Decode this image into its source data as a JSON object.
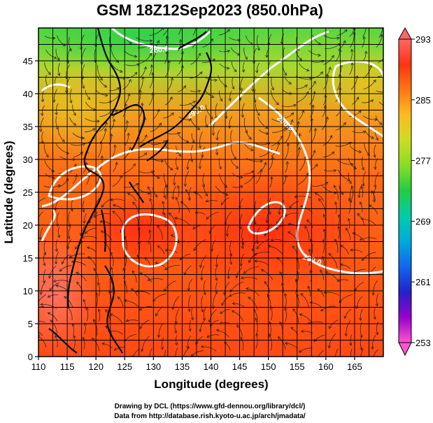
{
  "title": "GSM 18Z12Sep2023 (850.0hPa)",
  "x_axis": {
    "label": "Longitude (degrees)",
    "min": 110,
    "max": 170,
    "ticks": [
      110,
      115,
      120,
      125,
      130,
      135,
      140,
      145,
      150,
      155,
      160,
      165
    ]
  },
  "y_axis": {
    "label": "Latitude  (degrees)",
    "min": 0,
    "max": 50,
    "ticks": [
      0,
      5,
      10,
      15,
      20,
      25,
      30,
      35,
      40,
      45
    ]
  },
  "colorbar": {
    "min": 253,
    "max": 293,
    "labels": [
      293,
      285,
      277,
      269,
      261,
      253
    ],
    "colors": [
      "#ff55cc",
      "#9900cc",
      "#2222cc",
      "#1166ee",
      "#00aadd",
      "#00ccaa",
      "#22cc44",
      "#88dd22",
      "#ccdd22",
      "#ffbb22",
      "#ff7711",
      "#ff3311",
      "#ff6666"
    ]
  },
  "contours": [
    {
      "label": "290.0",
      "level": 290
    },
    {
      "label": "280.0",
      "level": 280
    }
  ],
  "credits": {
    "line1": "Drawing by DCL (https://www.gfd-dennou.org/library/dcl/)",
    "line2": "Data from http://database.rish.kyoto-u.ac.jp/arch/jmadata/"
  }
}
